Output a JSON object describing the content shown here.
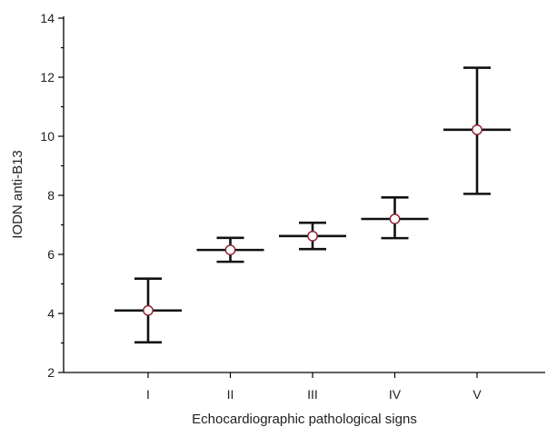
{
  "chart_data": {
    "type": "scatter",
    "xlabel": "Echocardiographic pathological signs",
    "ylabel": "IODN anti-B13",
    "categories": [
      "I",
      "II",
      "III",
      "IV",
      "V"
    ],
    "means": [
      4.1,
      6.15,
      6.62,
      7.2,
      10.22
    ],
    "lower": [
      3.02,
      5.75,
      6.18,
      6.55,
      8.05
    ],
    "upper": [
      5.18,
      6.56,
      7.07,
      7.93,
      12.32
    ],
    "ylim": [
      2,
      14
    ],
    "y_ticks": [
      2,
      4,
      6,
      8,
      10,
      12,
      14
    ],
    "y_tick_labels": [
      "2",
      "4",
      "6",
      "8",
      "10",
      "12",
      "14"
    ],
    "grid": false,
    "colors": {
      "bars": "#111111",
      "marker_edge": "#8b1a2a",
      "marker_fill": "#ffffff"
    }
  }
}
